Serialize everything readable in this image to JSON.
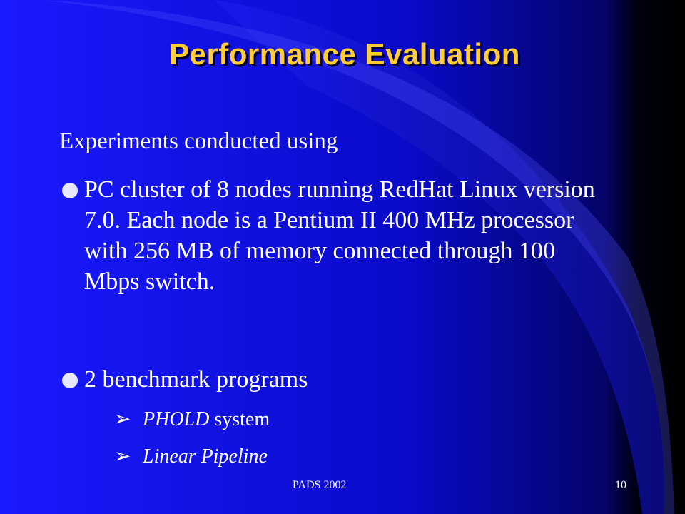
{
  "title": "Performance Evaluation",
  "intro": "Experiments conducted using",
  "bullets": [
    {
      "text": "PC cluster of 8 nodes running RedHat Linux version 7.0.  Each node is a Pentium II 400 MHz processor with 256 MB of memory connected through 100 Mbps switch."
    },
    {
      "text": "2 benchmark programs",
      "sub_bullets": [
        {
          "italic": "PHOLD",
          "text": "system"
        },
        {
          "italic": "Linear Pipeline"
        }
      ]
    }
  ],
  "footer": "PADS 2002",
  "page_number": "10"
}
